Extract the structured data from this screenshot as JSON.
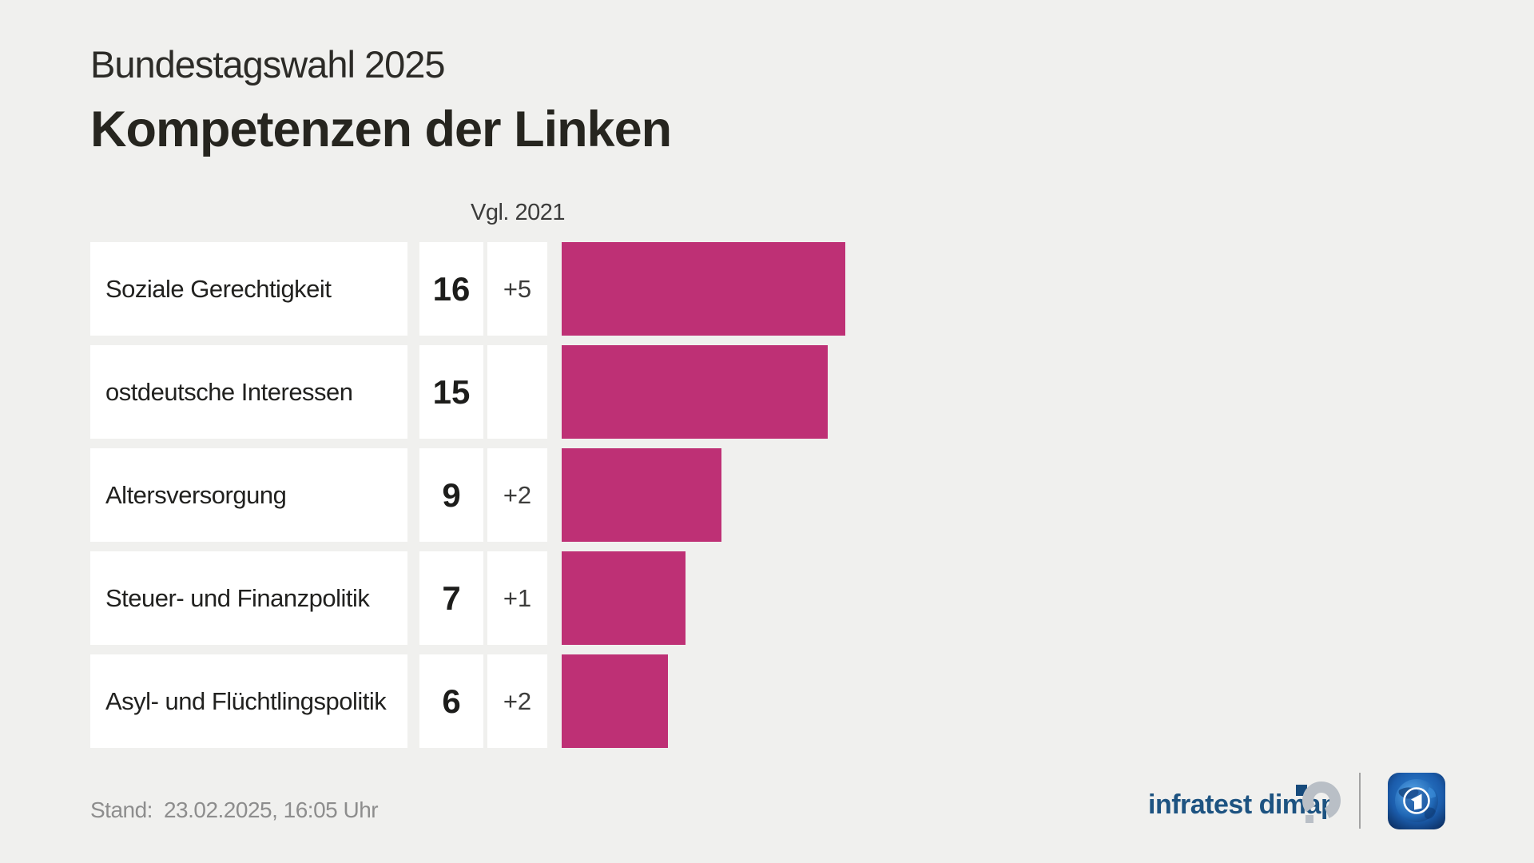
{
  "header": {
    "subtitle": "Bundestagswahl 2025",
    "title": "Kompetenzen der Linken"
  },
  "chart_data": {
    "type": "bar",
    "orientation": "horizontal",
    "title": "Kompetenzen der Linken",
    "subtitle": "Bundestagswahl 2025",
    "comparison_label": "Vgl. 2021",
    "categories": [
      "Soziale Gerechtigkeit",
      "ostdeutsche Interessen",
      "Altersversorgung",
      "Steuer- und Finanzpolitik",
      "Asyl- und Flüchtlingspolitik"
    ],
    "values": [
      16,
      15,
      9,
      7,
      6
    ],
    "deltas": [
      "+5",
      "",
      "+2",
      "+1",
      "+2"
    ],
    "xlim": [
      0,
      16
    ],
    "bar_color": "#be3075",
    "grid": false,
    "legend": false
  },
  "footer": {
    "stand_label": "Stand:",
    "stand_value": "23.02.2025, 16:05 Uhr",
    "brand": "infratest dimap"
  },
  "icons": {
    "brand_mark": "infratest-dimap-logo-icon",
    "ard": "ard-logo-icon"
  },
  "colors": {
    "background": "#f0f0ee",
    "box": "#ffffff",
    "bar": "#be3075",
    "title_text": "#26251f",
    "label_text": "#21211f",
    "muted_text": "#8d8d8d",
    "brand_blue": "#1d5381"
  }
}
